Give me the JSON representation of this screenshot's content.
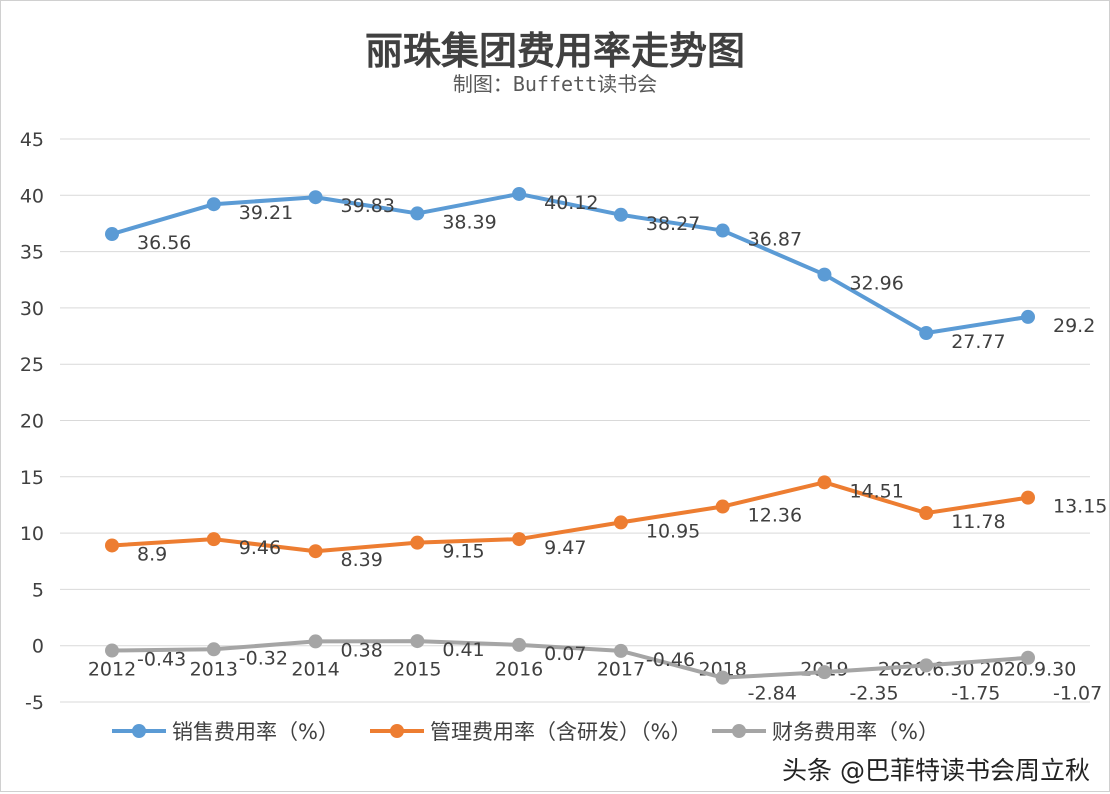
{
  "chart_data": {
    "type": "line",
    "title": "丽珠集团费用率走势图",
    "subtitle": "制图：Buffett读书会",
    "categories": [
      "2012",
      "2013",
      "2014",
      "2015",
      "2016",
      "2017",
      "2018",
      "2019",
      "2020.6.30",
      "2020.9.30"
    ],
    "ylim": [
      -5,
      45
    ],
    "yticks": [
      "-5",
      "0",
      "5",
      "10",
      "15",
      "20",
      "25",
      "30",
      "35",
      "40",
      "45"
    ],
    "grid": true,
    "legend_position": "bottom",
    "series": [
      {
        "name": "销售费用率（%）",
        "color": "#5B9BD5",
        "values": [
          36.56,
          39.21,
          39.83,
          38.39,
          40.12,
          38.27,
          36.87,
          32.96,
          27.77,
          29.2
        ]
      },
      {
        "name": "管理费用率（含研发）（%）",
        "color": "#ED7D31",
        "values": [
          8.9,
          9.46,
          8.39,
          9.15,
          9.47,
          10.95,
          12.36,
          14.51,
          11.78,
          13.15
        ]
      },
      {
        "name": "财务费用率（%）",
        "color": "#A5A5A5",
        "values": [
          -0.43,
          -0.32,
          0.38,
          0.41,
          0.07,
          -0.46,
          -2.84,
          -2.35,
          -1.75,
          -1.07
        ]
      }
    ]
  },
  "watermark": "头条 @巴菲特读书会周立秋"
}
